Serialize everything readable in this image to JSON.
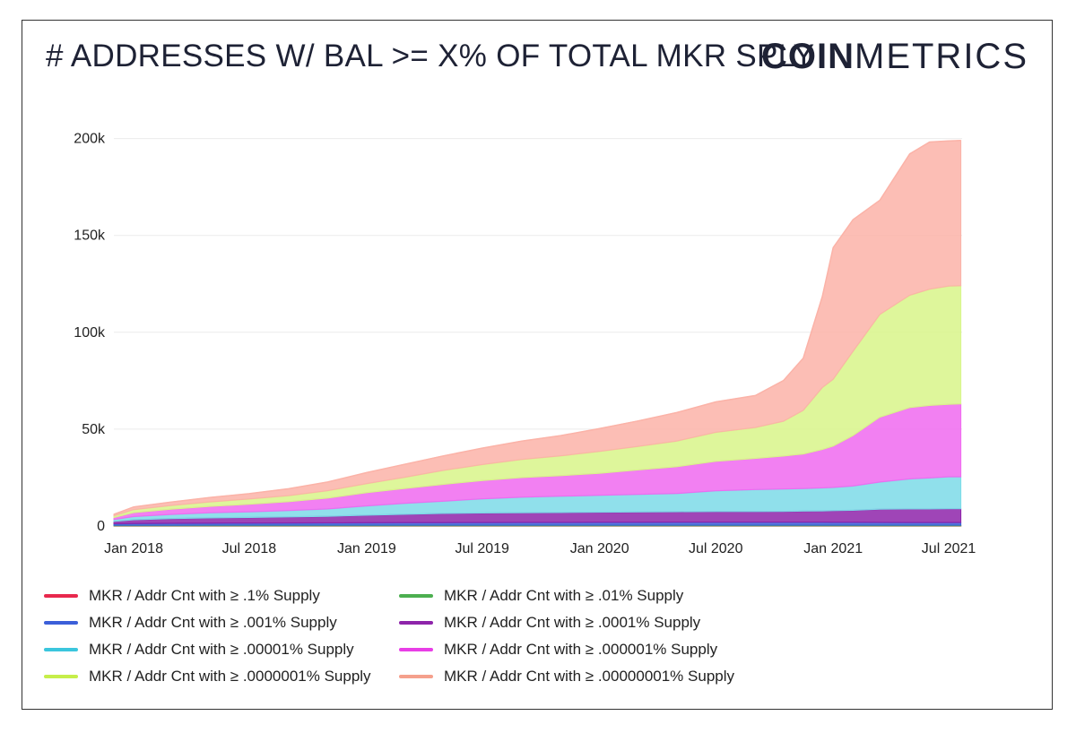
{
  "header": {
    "title": "# ADDRESSES W/ BAL >= X% OF TOTAL MKR SPLY",
    "brand_bold": "COIN",
    "brand_light": "METRICS"
  },
  "chart_data": {
    "type": "area",
    "stacked": true,
    "title": "# ADDRESSES W/ BAL >= X% OF TOTAL MKR SPLY",
    "x": [
      "2017-12-01",
      "2018-01-01",
      "2018-03-01",
      "2018-05-01",
      "2018-07-01",
      "2018-09-01",
      "2018-11-01",
      "2019-01-01",
      "2019-03-01",
      "2019-05-01",
      "2019-07-01",
      "2019-09-01",
      "2019-11-01",
      "2020-01-01",
      "2020-03-01",
      "2020-05-01",
      "2020-07-01",
      "2020-09-01",
      "2020-10-15",
      "2020-11-15",
      "2020-12-15",
      "2021-01-01",
      "2021-02-01",
      "2021-03-15",
      "2021-05-01",
      "2021-06-01",
      "2021-07-01",
      "2021-07-20"
    ],
    "xlim": [
      "2017-12-01",
      "2021-07-22"
    ],
    "xticks": [
      "Jan 2018",
      "Jul 2018",
      "Jan 2019",
      "Jul 2019",
      "Jan 2020",
      "Jul 2020",
      "Jan 2021",
      "Jul 2021"
    ],
    "xtick_dates": [
      "2018-01-01",
      "2018-07-01",
      "2019-01-01",
      "2019-07-01",
      "2020-01-01",
      "2020-07-01",
      "2021-01-01",
      "2021-07-01"
    ],
    "ylim": [
      0,
      210000
    ],
    "yticks": [
      0,
      50000,
      100000,
      150000,
      200000
    ],
    "ytick_labels": [
      "0",
      "50k",
      "100k",
      "150k",
      "200k"
    ],
    "grid": true,
    "legend_position": "bottom",
    "series": [
      {
        "name": "MKR / Addr Cnt with ≥ .1% Supply",
        "color": "#e8284d",
        "values": [
          50,
          55,
          60,
          62,
          63,
          63,
          63,
          62,
          62,
          62,
          62,
          62,
          62,
          62,
          62,
          62,
          62,
          62,
          62,
          62,
          62,
          62,
          62,
          62,
          62,
          62,
          62,
          62
        ]
      },
      {
        "name": "MKR / Addr Cnt with ≥ .01% Supply",
        "color": "#4caf50",
        "values": [
          300,
          320,
          330,
          340,
          345,
          345,
          345,
          345,
          345,
          345,
          345,
          345,
          345,
          345,
          345,
          345,
          345,
          345,
          345,
          345,
          345,
          345,
          345,
          345,
          345,
          345,
          345,
          345
        ]
      },
      {
        "name": "MKR / Addr Cnt with ≥ .001% Supply",
        "color": "#3b5fd9",
        "values": [
          800,
          900,
          1000,
          1050,
          1100,
          1150,
          1200,
          1250,
          1300,
          1350,
          1400,
          1450,
          1450,
          1500,
          1500,
          1550,
          1550,
          1550,
          1550,
          1550,
          1550,
          1500,
          1500,
          1450,
          1400,
          1400,
          1400,
          1400
        ]
      },
      {
        "name": "MKR / Addr Cnt with ≥ .0001% Supply",
        "color": "#8e24aa",
        "values": [
          1200,
          1900,
          2400,
          2700,
          2900,
          3100,
          3400,
          3900,
          4300,
          4700,
          4900,
          5000,
          5100,
          5200,
          5300,
          5400,
          5500,
          5500,
          5600,
          5700,
          5800,
          6000,
          6200,
          6800,
          7000,
          7000,
          7100,
          7100
        ]
      },
      {
        "name": "MKR / Addr Cnt with ≥ .00001% Supply",
        "color": "#7ddbe8",
        "values": [
          1000,
          1700,
          2200,
          2700,
          2900,
          3300,
          3800,
          4800,
          5700,
          6300,
          7300,
          8000,
          8400,
          8700,
          9100,
          9400,
          10700,
          11300,
          11500,
          11700,
          11900,
          12000,
          12500,
          14000,
          15500,
          16000,
          16500,
          16500
        ]
      },
      {
        "name": "MKR / Addr Cnt with ≥ .000001% Supply",
        "color": "#f06af0",
        "values": [
          1000,
          2000,
          2700,
          3300,
          3900,
          4600,
          5600,
          6800,
          7600,
          8700,
          9400,
          10100,
          10600,
          11400,
          12600,
          13800,
          15200,
          16100,
          17000,
          17800,
          19800,
          21300,
          26000,
          33500,
          36800,
          37400,
          37400,
          37600
        ]
      },
      {
        "name": "MKR / Addr Cnt with ≥ .0000001% Supply",
        "color": "#d8f58a",
        "values": [
          900,
          1600,
          1900,
          2300,
          2700,
          3100,
          3800,
          4700,
          5800,
          7200,
          8300,
          9400,
          10200,
          11300,
          12100,
          13300,
          15000,
          16000,
          18000,
          22500,
          32000,
          34500,
          43500,
          53000,
          58000,
          60000,
          61000,
          61000
        ]
      },
      {
        "name": "MKR / Addr Cnt with ≥ .00000001% Supply",
        "color": "#fbb3a8",
        "values": [
          800,
          1400,
          1800,
          2300,
          2800,
          3600,
          4500,
          5700,
          6700,
          7500,
          8500,
          9500,
          10500,
          11800,
          13200,
          14700,
          15700,
          16500,
          21000,
          27000,
          47000,
          68000,
          68000,
          59000,
          73000,
          76000,
          75000,
          75000
        ]
      }
    ]
  },
  "legend": {
    "items": [
      {
        "label": "MKR / Addr Cnt with ≥ .1% Supply",
        "color": "#e8284d"
      },
      {
        "label": "MKR / Addr Cnt with ≥ .01% Supply",
        "color": "#4caf50"
      },
      {
        "label": "MKR / Addr Cnt with ≥ .001% Supply",
        "color": "#3b5fd9"
      },
      {
        "label": "MKR / Addr Cnt with ≥ .0001% Supply",
        "color": "#8e24aa"
      },
      {
        "label": "MKR / Addr Cnt with ≥ .00001% Supply",
        "color": "#3bc6dd"
      },
      {
        "label": "MKR / Addr Cnt with ≥ .000001% Supply",
        "color": "#e83ee6"
      },
      {
        "label": "MKR / Addr Cnt with ≥ .0000001% Supply",
        "color": "#c6ee4a"
      },
      {
        "label": "MKR / Addr Cnt with ≥ .00000001% Supply",
        "color": "#f5a08c"
      }
    ]
  }
}
